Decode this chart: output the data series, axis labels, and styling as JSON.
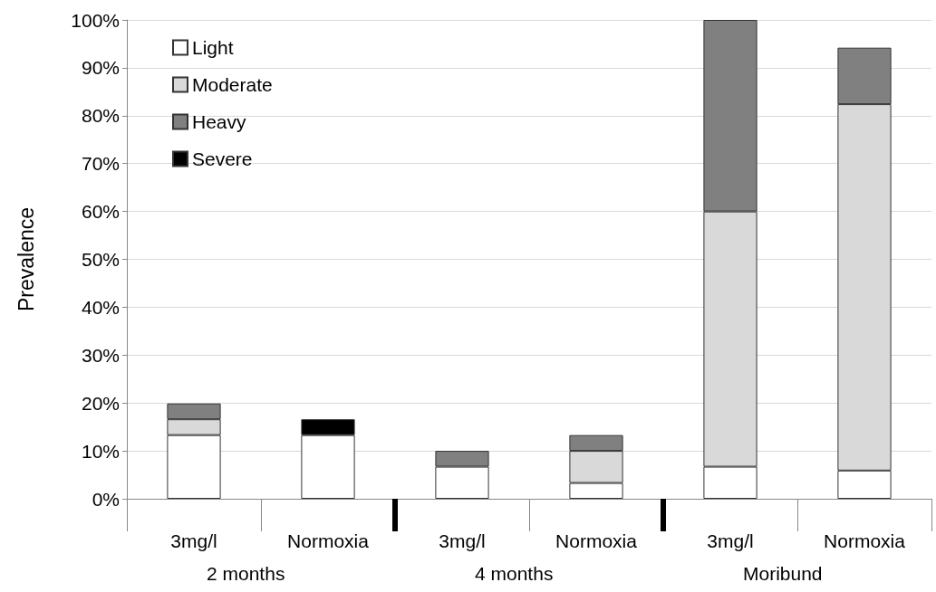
{
  "chart_data": {
    "type": "bar",
    "stacked": true,
    "ylabel": "Prevalence",
    "categories": [
      "3mg/l",
      "Normoxia",
      "3mg/l",
      "Normoxia",
      "3mg/l",
      "Normoxia"
    ],
    "annotations": [
      "2 months",
      "4 months",
      "Moribund"
    ],
    "series": [
      {
        "name": "Light",
        "color": "#ffffff",
        "values": [
          13.3,
          13.3,
          6.7,
          3.3,
          6.7,
          5.9
        ]
      },
      {
        "name": "Moderate",
        "color": "#d9d9d9",
        "values": [
          3.3,
          null,
          null,
          6.7,
          53.3,
          76.5
        ]
      },
      {
        "name": "Heavy",
        "color": "#808080",
        "values": [
          3.3,
          null,
          3.3,
          3.3,
          40,
          11.8
        ]
      },
      {
        "name": "Severe",
        "color": "#000000",
        "values": [
          null,
          3.3,
          null,
          null,
          null,
          null
        ]
      }
    ],
    "ylim": [
      0,
      100
    ],
    "yticks": [
      {
        "value": 0,
        "label": "0%"
      },
      {
        "value": 10,
        "label": "10%"
      },
      {
        "value": 20,
        "label": "20%"
      },
      {
        "value": 30,
        "label": "30%"
      },
      {
        "value": 40,
        "label": "40%"
      },
      {
        "value": 50,
        "label": "50%"
      },
      {
        "value": 60,
        "label": "60%"
      },
      {
        "value": 70,
        "label": "70%"
      },
      {
        "value": 80,
        "label": "80%"
      },
      {
        "value": 90,
        "label": "90%"
      },
      {
        "value": 100,
        "label": "100%"
      }
    ],
    "grid": "y",
    "legend": "top left"
  }
}
